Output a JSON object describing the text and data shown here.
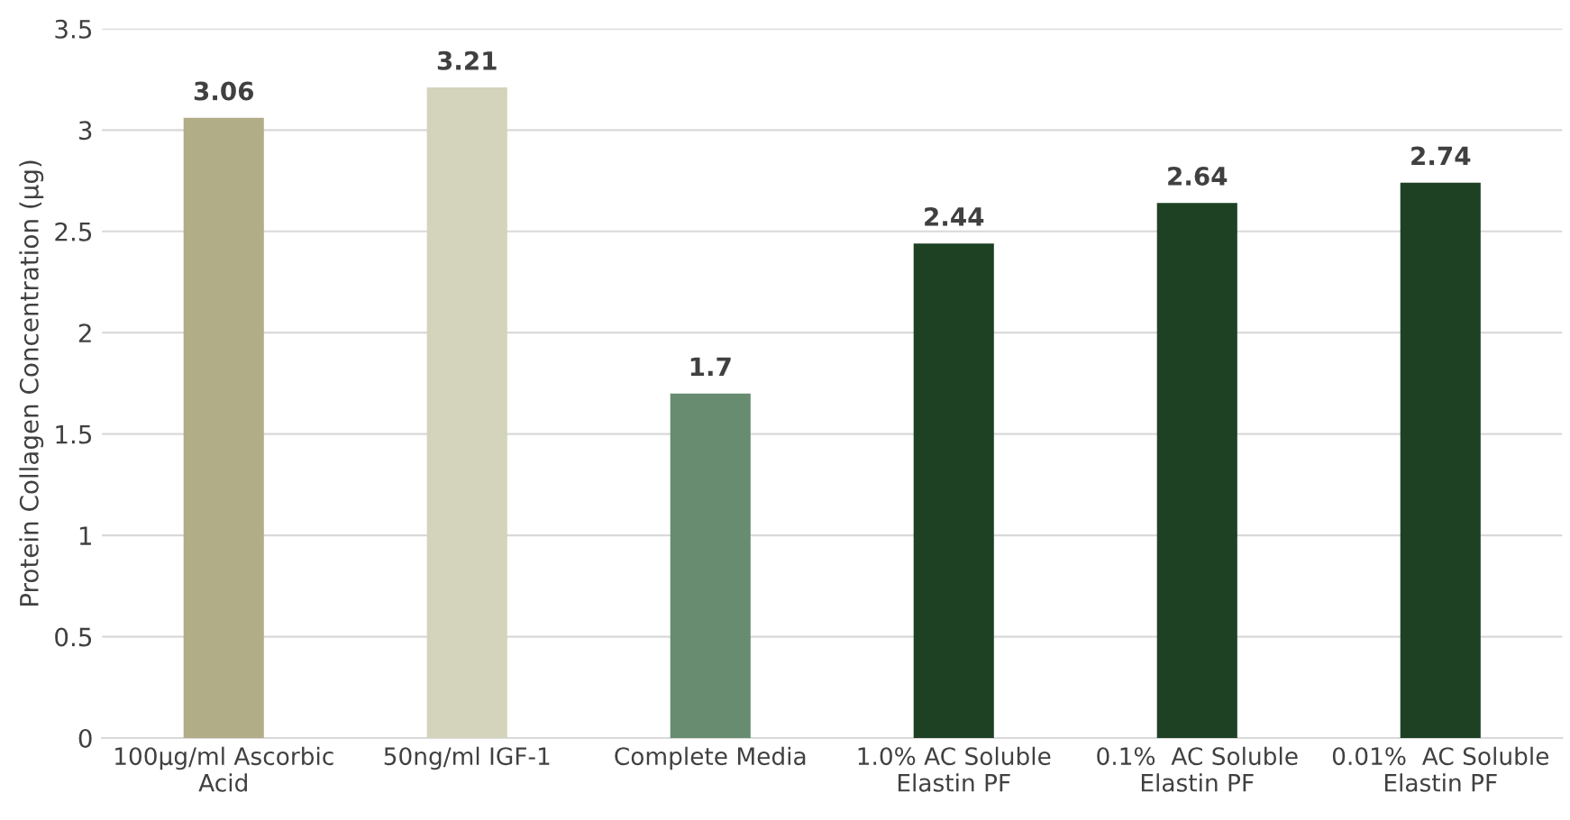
{
  "chart_data": {
    "type": "bar",
    "ylabel": "Protein Collagen Concentration (µg)",
    "categories": [
      "100µg/ml Ascorbic\nAcid",
      "50ng/ml IGF-1",
      "Complete Media",
      "1.0% AC Soluble\nElastin PF",
      "0.1%  AC Soluble\nElastin PF",
      "0.01%  AC Soluble\nElastin PF"
    ],
    "values": [
      3.06,
      3.21,
      1.7,
      2.44,
      2.64,
      2.74
    ],
    "colors": [
      "#b0ad87",
      "#d4d3bb",
      "#688c70",
      "#1e4124",
      "#1e4124",
      "#1e4124"
    ],
    "ylim": [
      0,
      3.5
    ],
    "yticks": [
      0,
      0.5,
      1,
      1.5,
      2,
      2.5,
      3,
      3.5
    ],
    "grid": "y",
    "data_labels": true
  }
}
